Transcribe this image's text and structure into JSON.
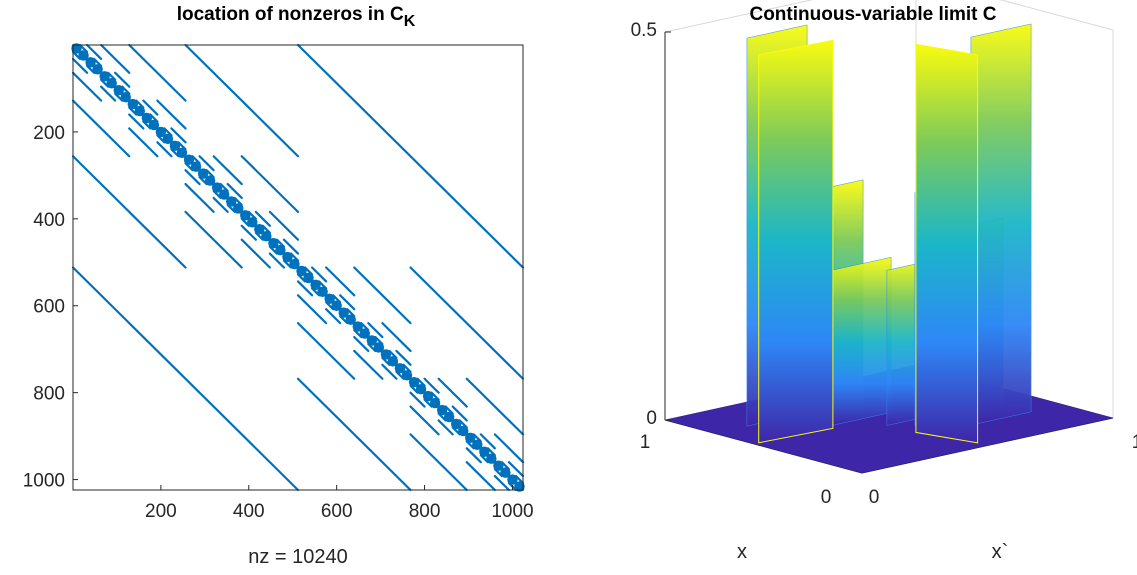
{
  "chart_data": [
    {
      "type": "spy",
      "title_main": "location of nonzeros in C",
      "title_sub": "K",
      "xlabel": "nz = 10240",
      "xlim": [
        0,
        1024
      ],
      "ylim": [
        0,
        1024
      ],
      "y_reversed": true,
      "xticks": [
        200,
        400,
        600,
        800,
        1000
      ],
      "yticks": [
        200,
        400,
        600,
        800,
        1000
      ],
      "matrix_size": 1024,
      "nnz": 10240,
      "color": "#0072BD",
      "offsets": [
        512,
        256,
        128,
        64,
        32,
        16,
        8,
        4,
        2,
        1
      ],
      "block_levels": [
        1024,
        512,
        256,
        128,
        64,
        32,
        16,
        8,
        4,
        2
      ]
    },
    {
      "type": "surface",
      "title": "Continuous-variable limit C",
      "xlabel": "x",
      "ylabel": "x`",
      "zlim": [
        0,
        0.5
      ],
      "zticks": [
        "0",
        "0.5"
      ],
      "x_tick_labels": [
        "1",
        "0"
      ],
      "y_tick_labels": [
        "0",
        "1"
      ],
      "colormap": [
        "#3e26a8",
        "#2e87f7",
        "#1bb6c8",
        "#7cca5a",
        "#f9fb0e"
      ],
      "floor_color": "#3e26a8",
      "walls": [
        {
          "pos": 0.375,
          "h": 0.3
        },
        {
          "pos": 0.3125,
          "h": 0.25
        },
        {
          "pos": 0.4375,
          "h": 0.2
        },
        {
          "pos": 0.5625,
          "h": 0.2
        },
        {
          "pos": 0.6875,
          "h": 0.25
        },
        {
          "pos": 0.625,
          "h": 0.3
        },
        {
          "pos": 0.25,
          "h": 0.5
        },
        {
          "pos": 0.75,
          "h": 0.5
        }
      ]
    }
  ]
}
